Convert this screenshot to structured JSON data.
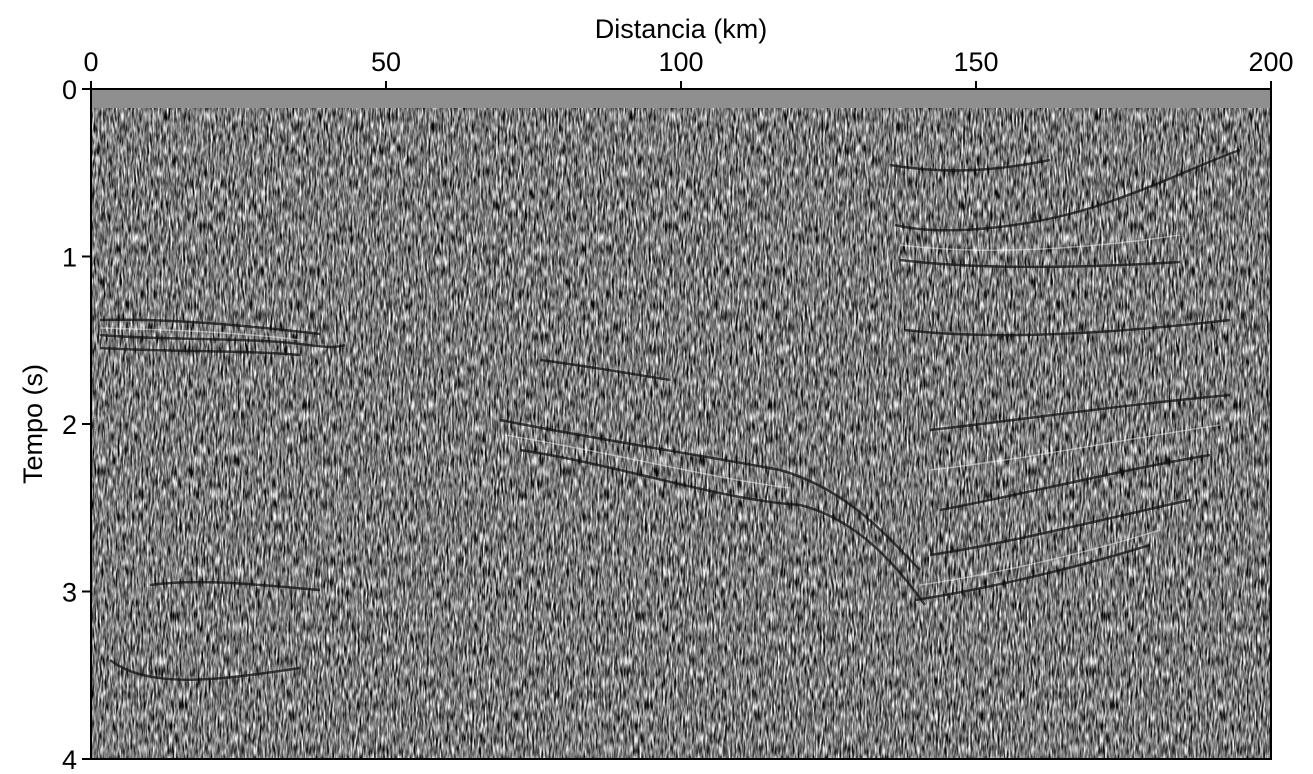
{
  "figure": {
    "xlabel": "Distancia (km)",
    "ylabel": "Tempo (s)",
    "x_axis": {
      "range": [
        0,
        200
      ],
      "position": "top",
      "ticks": [
        {
          "value": 0,
          "label": "0"
        },
        {
          "value": 50,
          "label": "50"
        },
        {
          "value": 100,
          "label": "100"
        },
        {
          "value": 150,
          "label": "150"
        },
        {
          "value": 200,
          "label": "200"
        }
      ]
    },
    "y_axis": {
      "range": [
        0,
        4
      ],
      "direction": "down",
      "ticks": [
        {
          "value": 0,
          "label": "0"
        },
        {
          "value": 1,
          "label": "1"
        },
        {
          "value": 2,
          "label": "2"
        },
        {
          "value": 3,
          "label": "3"
        },
        {
          "value": 4,
          "label": "4"
        }
      ]
    },
    "colors": {
      "background": "#ffffff",
      "mute_zone": "#8f8f8f",
      "frame": "#000000"
    },
    "image": "grayscale seismic reflection section"
  }
}
